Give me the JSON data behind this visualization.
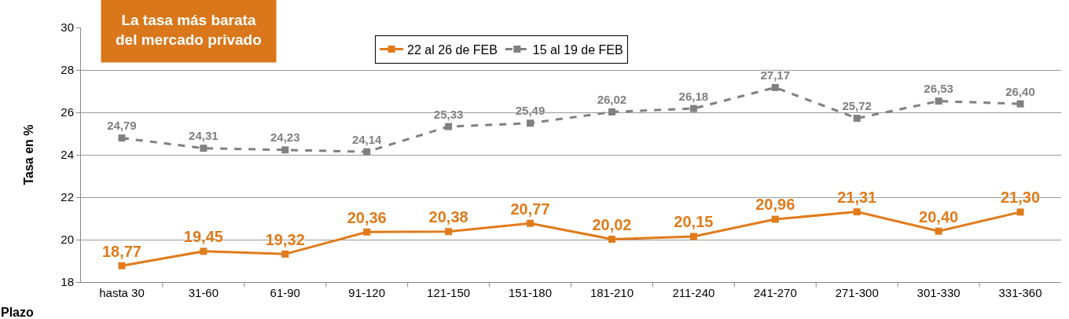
{
  "chart_data": {
    "type": "line",
    "ylabel": "Tasa en %",
    "xlabel": "Plazo",
    "annotations": [
      "La tasa más barata\ndel mercado privado"
    ],
    "categories": [
      "hasta 30",
      "31-60",
      "61-90",
      "91-120",
      "121-150",
      "151-180",
      "181-210",
      "211-240",
      "241-270",
      "271-300",
      "301-330",
      "331-360"
    ],
    "series": [
      {
        "name": "22 al 26 de FEB",
        "color": "#e07b1b",
        "line_style": "solid",
        "values": [
          18.77,
          19.45,
          19.32,
          20.36,
          20.38,
          20.77,
          20.02,
          20.15,
          20.96,
          21.31,
          20.4,
          21.3
        ],
        "value_labels": [
          "18,77",
          "19,45",
          "19,32",
          "20,36",
          "20,38",
          "20,77",
          "20,02",
          "20,15",
          "20,96",
          "21,31",
          "20,40",
          "21,30"
        ]
      },
      {
        "name": "15 al 19 de FEB",
        "color": "#808080",
        "line_style": "dashed",
        "values": [
          24.79,
          24.31,
          24.23,
          24.14,
          25.33,
          25.49,
          26.02,
          26.18,
          27.17,
          25.72,
          26.53,
          26.4
        ],
        "value_labels": [
          "24,79",
          "24,31",
          "24,23",
          "24,14",
          "25,33",
          "25,49",
          "26,02",
          "26,18",
          "27,17",
          "25,72",
          "26,53",
          "26,40"
        ]
      }
    ],
    "ylim": [
      18,
      30
    ],
    "yticks": [
      18,
      20,
      22,
      24,
      26,
      28,
      30
    ],
    "grid": "y",
    "legend": "top",
    "marker": "square"
  }
}
